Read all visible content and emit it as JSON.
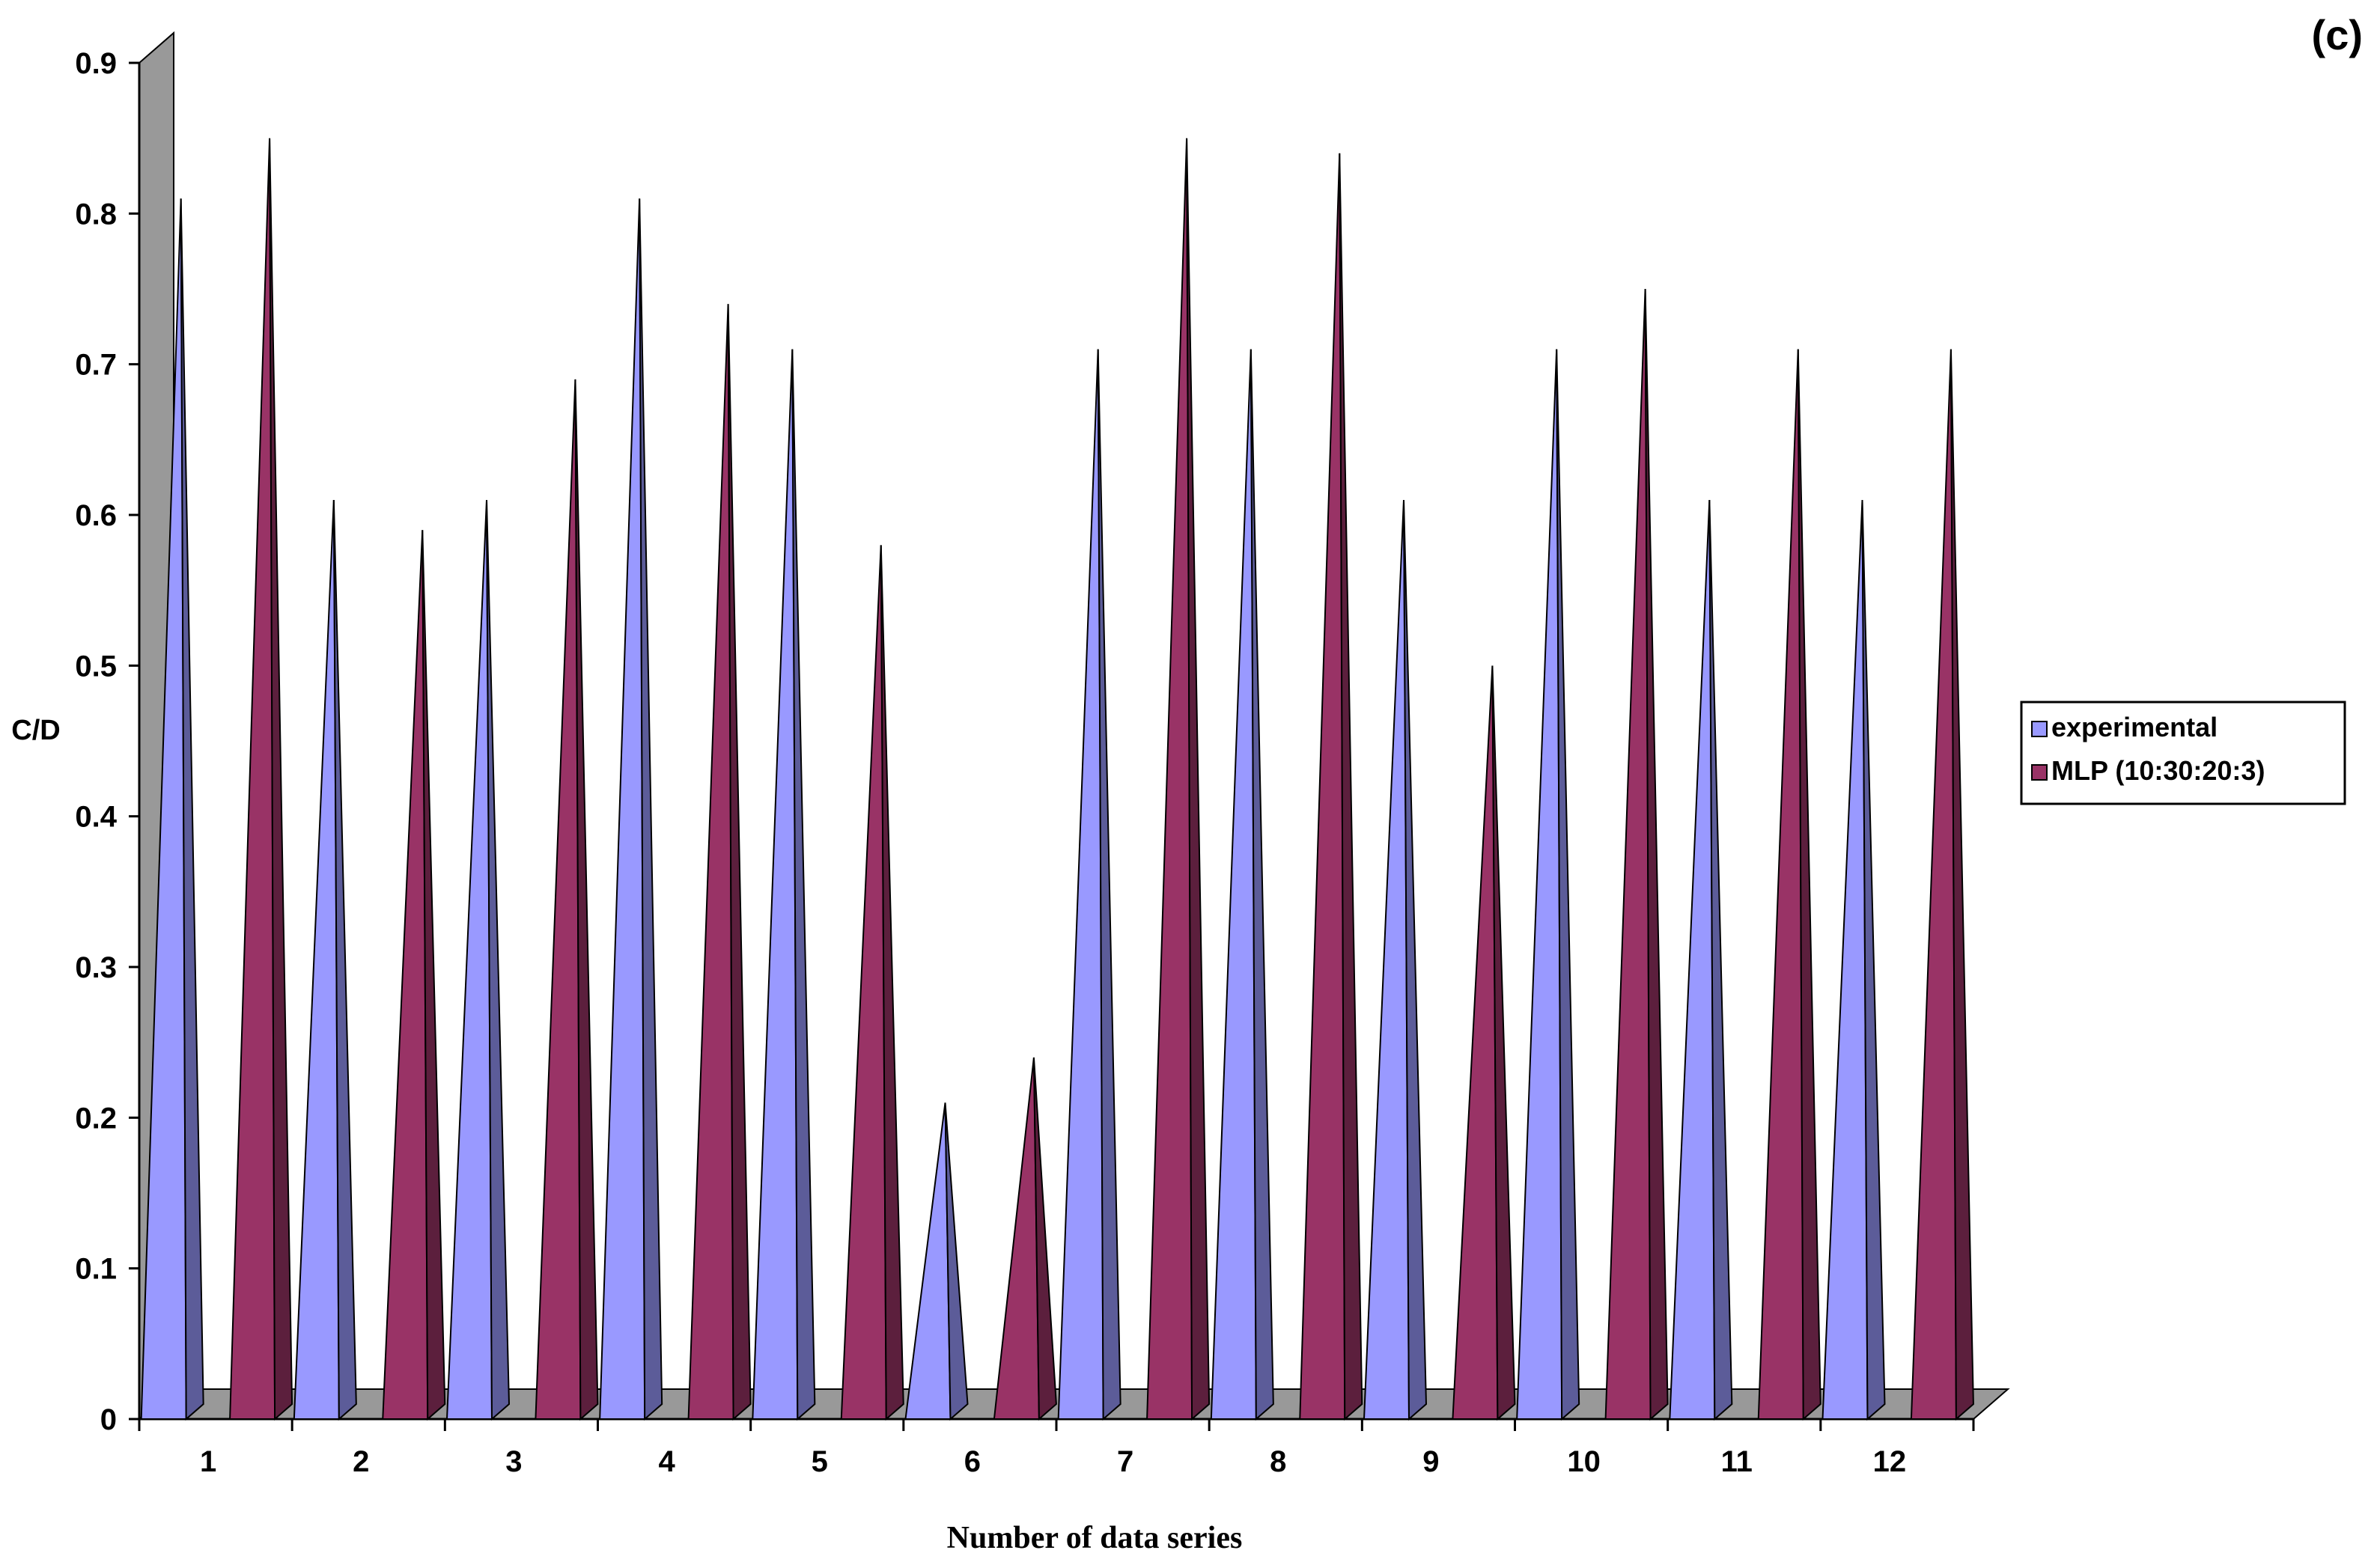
{
  "panel_label": "(c)",
  "chart_data": {
    "type": "bar",
    "style": "3d-cone",
    "xlabel": "Number of data series",
    "ylabel": "C/D",
    "ylim": [
      0,
      0.9
    ],
    "yticks": [
      "0",
      "0.1",
      "0.2",
      "0.3",
      "0.4",
      "0.5",
      "0.6",
      "0.7",
      "0.8",
      "0.9"
    ],
    "categories": [
      "1",
      "2",
      "3",
      "4",
      "5",
      "6",
      "7",
      "8",
      "9",
      "10",
      "11",
      "12"
    ],
    "series": [
      {
        "name": "experimental",
        "color": "#9999ff",
        "values": [
          0.8,
          0.6,
          0.6,
          0.8,
          0.7,
          0.2,
          0.7,
          0.7,
          0.6,
          0.7,
          0.6,
          0.6
        ]
      },
      {
        "name": "MLP (10:30:20:3)",
        "color": "#993366",
        "values": [
          0.84,
          0.58,
          0.68,
          0.73,
          0.57,
          0.23,
          0.84,
          0.83,
          0.49,
          0.74,
          0.7,
          0.7
        ]
      }
    ],
    "legend_position": "right",
    "grid": false
  }
}
